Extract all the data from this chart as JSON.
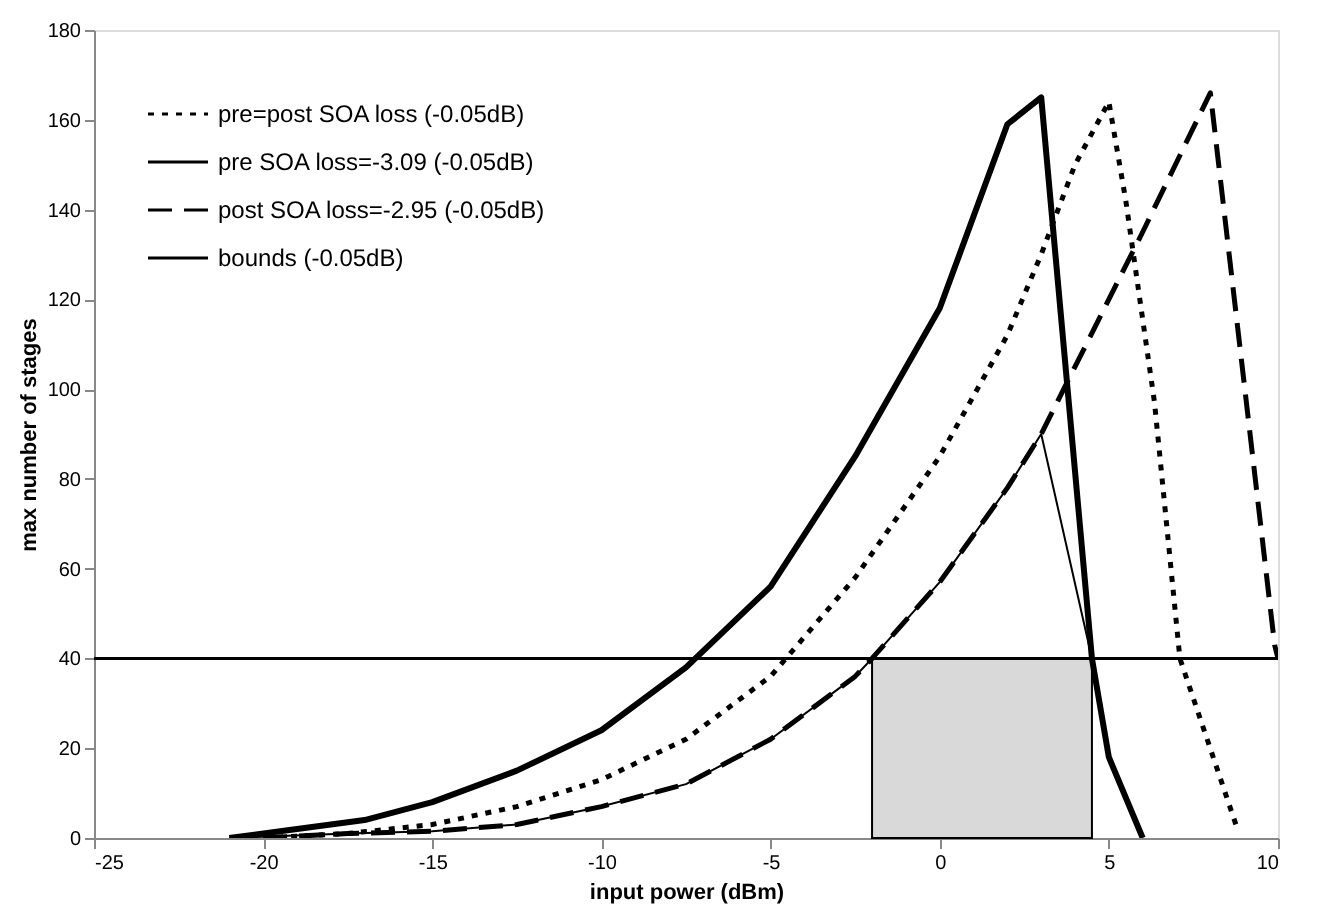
{
  "chart_data": {
    "type": "line",
    "xlabel": "input power (dBm)",
    "ylabel": "max number of stages",
    "xlim": [
      -25,
      10
    ],
    "xticks": [
      -25,
      -20,
      -15,
      -10,
      -5,
      0,
      5,
      10
    ],
    "ylim": [
      0,
      180
    ],
    "yticks": [
      0,
      20,
      40,
      60,
      80,
      100,
      120,
      140,
      160,
      180
    ],
    "grid": false,
    "legend": "top left",
    "series": [
      {
        "name": "pre=post SOA loss (-0.05dB)",
        "color": "#000000",
        "line_style": "dotted",
        "x": [
          -20,
          -17.5,
          -15,
          -12.5,
          -10,
          -7.5,
          -5,
          -2.5,
          0,
          2,
          3,
          4,
          5,
          5.5,
          6.35,
          7.1,
          8.8
        ],
        "values": [
          0,
          1,
          3,
          7,
          13,
          22,
          36,
          58,
          85,
          112,
          130,
          150,
          164,
          142,
          97,
          40,
          2
        ]
      },
      {
        "name": "pre SOA loss=-3.09 (-0.05dB)",
        "color": "#000000",
        "line_style": "solid",
        "x": [
          -21,
          -19,
          -17,
          -15,
          -12.5,
          -10,
          -7.5,
          -5,
          -2.5,
          0,
          2,
          3,
          4.5,
          5,
          6
        ],
        "values": [
          0,
          2,
          4,
          8,
          15,
          24,
          38,
          56,
          85,
          118,
          159,
          165,
          40,
          18,
          0
        ]
      },
      {
        "name": "post SOA loss=-2.95 (-0.05dB)",
        "color": "#000000",
        "line_style": "dashed",
        "x": [
          -20,
          -17.5,
          -15,
          -12.5,
          -10,
          -7.5,
          -5,
          -2.5,
          -2,
          0,
          2,
          3,
          4,
          6,
          8,
          9.9,
          10
        ],
        "values": [
          0,
          1,
          1.5,
          3,
          7,
          12,
          22,
          36,
          40,
          57,
          78,
          90,
          105,
          135,
          166,
          43,
          40
        ]
      },
      {
        "name": "bounds (-0.05dB)",
        "color": "#000000",
        "line_style": "solid",
        "x": [
          -21,
          -17.5,
          -15,
          -12.5,
          -10,
          -7.5,
          -5,
          -2.5,
          -2,
          0,
          2,
          3,
          4.5
        ],
        "values": [
          0,
          1,
          1.5,
          3,
          7,
          12,
          22,
          36,
          40,
          57,
          78,
          90,
          40
        ]
      }
    ],
    "ref_lines": [
      {
        "axis": "y",
        "value": 40,
        "color": "#000000"
      }
    ],
    "bands": [
      {
        "axis": "x",
        "from": -2,
        "to": 4.5,
        "color": "#d9d9d9"
      }
    ]
  }
}
